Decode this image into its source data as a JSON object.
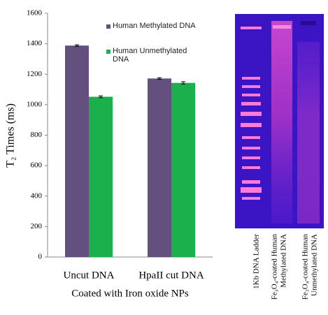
{
  "chart_data": {
    "type": "bar",
    "categories": [
      "Uncut DNA",
      "HpaII cut DNA"
    ],
    "xlabel": "Coated with Iron oxide NPs",
    "ylabel": "T₂ Times (ms)",
    "series": [
      {
        "name": "Human Methylated DNA",
        "color": "#63507f",
        "values": [
          1388,
          1172
        ],
        "errors": [
          5,
          5
        ]
      },
      {
        "name": "Human Unmethylated DNA",
        "color": "#1cb04c",
        "values": [
          1052,
          1143
        ],
        "errors": [
          6,
          8
        ]
      }
    ],
    "ylim": [
      0,
      1600
    ],
    "yticks": [
      0,
      200,
      400,
      600,
      800,
      1000,
      1200,
      1400,
      1600
    ]
  },
  "gel": {
    "lanes": [
      [
        "1Kb DNA Ladder"
      ],
      [
        "Fe₃O₄-coated Human",
        "Methylated DNA"
      ],
      [
        "Fe₃O₄-coated Human",
        "Unmethylated DNA"
      ]
    ]
  }
}
